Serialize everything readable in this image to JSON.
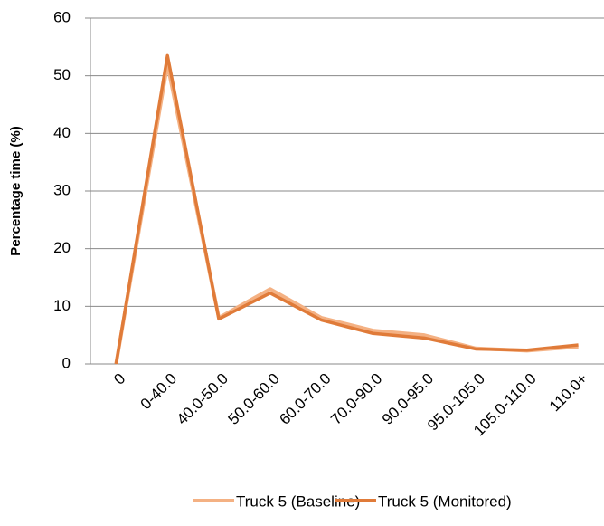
{
  "chart_data": {
    "type": "line",
    "y_label": "Percentage time (%)",
    "categories": [
      "0",
      "0-40.0",
      "40.0-50.0",
      "50.0-60.0",
      "60.0-70.0",
      "70.0-90.0",
      "90.0-95.0",
      "95.0-105.0",
      "105.0-110.0",
      "110.0+"
    ],
    "series": [
      {
        "name": "Truck 5 (Baseline)",
        "color": "#f4b183",
        "values": [
          0,
          52,
          8,
          13,
          8,
          5.8,
          5,
          2.7,
          2.3,
          3
        ]
      },
      {
        "name": "Truck 5 (Monitored)",
        "color": "#e07b39",
        "values": [
          0,
          53.5,
          7.8,
          12.3,
          7.6,
          5.3,
          4.5,
          2.6,
          2.4,
          3.3
        ]
      }
    ],
    "ylim": [
      0,
      60
    ],
    "yticks": [
      0,
      10,
      20,
      30,
      40,
      50,
      60
    ],
    "grid": true,
    "legend": "bottom"
  }
}
